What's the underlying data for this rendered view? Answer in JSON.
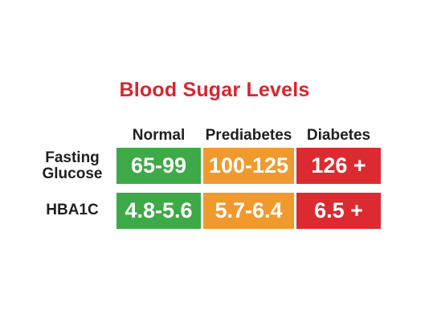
{
  "chart_data": {
    "type": "table",
    "title": "Blood Sugar Levels",
    "columns": [
      {
        "label": "Normal",
        "color": "#3eaa47"
      },
      {
        "label": "Prediabetes",
        "color": "#f09a2e"
      },
      {
        "label": "Diabetes",
        "color": "#db2b30"
      }
    ],
    "rows": [
      {
        "label_lines": [
          "Fasting",
          "Glucose"
        ],
        "values": [
          "65-99",
          "100-125",
          "126 +"
        ]
      },
      {
        "label_lines": [
          "HBA1C"
        ],
        "values": [
          "4.8-5.6",
          "5.7-6.4",
          "6.5 +"
        ]
      }
    ],
    "title_color": "#d62631"
  }
}
